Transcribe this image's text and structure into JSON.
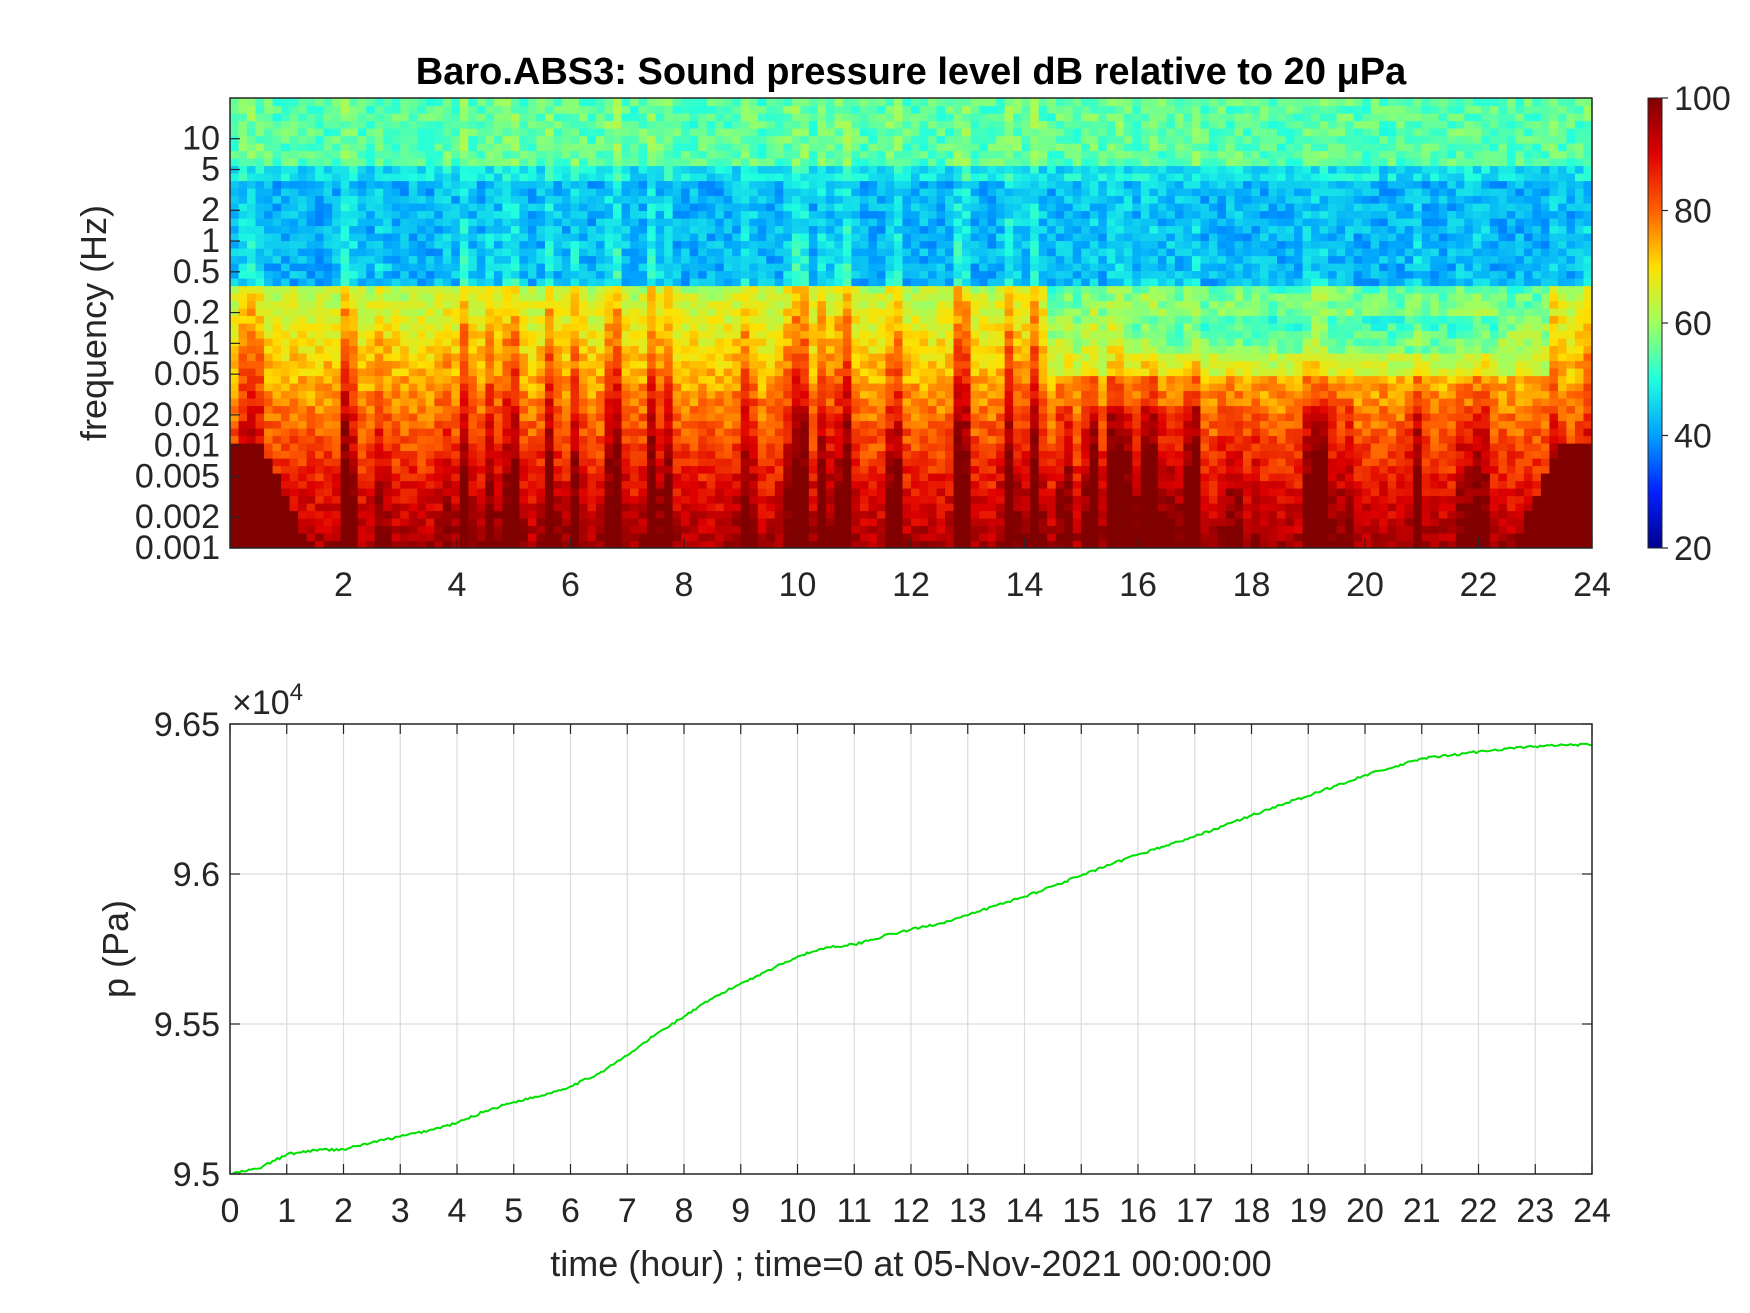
{
  "colors": {
    "background": "#ffffff",
    "axis": "#262626",
    "grid": "#dcdcdc",
    "line": "#00e000",
    "colormap": [
      "#00008f",
      "#0020ff",
      "#00a0ff",
      "#20ffdf",
      "#a0ff60",
      "#ffe000",
      "#ff6000",
      "#df0000",
      "#800000"
    ]
  },
  "chart_data": [
    {
      "type": "heatmap",
      "title": "Baro.ABS3: Sound pressure level dB relative to 20 μPa",
      "ylabel": "frequency (Hz)",
      "xlabel": "",
      "x_range": [
        0,
        24
      ],
      "x_ticks": [
        "2",
        "4",
        "6",
        "8",
        "10",
        "12",
        "14",
        "16",
        "18",
        "20",
        "22",
        "24"
      ],
      "y_scale": "log",
      "y_range": [
        0.001,
        25
      ],
      "y_ticks": [
        "0.001",
        "0.002",
        "0.005",
        "0.01",
        "0.02",
        "0.05",
        "0.1",
        "0.2",
        "0.5",
        "1",
        "2",
        "5",
        "10"
      ],
      "colorbar": {
        "range": [
          20,
          100
        ],
        "ticks": [
          "20",
          "40",
          "60",
          "80",
          "100"
        ]
      },
      "colormap": "jet",
      "grid": false
    },
    {
      "type": "line",
      "title": "",
      "xlabel": "time (hour) ; time=0 at 05-Nov-2021 00:00:00",
      "ylabel": "p (Pa)",
      "y_multiplier": "×10",
      "y_multiplier_exp": "4",
      "xlim": [
        0,
        24
      ],
      "ylim": [
        9.5,
        9.65
      ],
      "x_ticks": [
        "0",
        "1",
        "2",
        "3",
        "4",
        "5",
        "6",
        "7",
        "8",
        "9",
        "10",
        "11",
        "12",
        "13",
        "14",
        "15",
        "16",
        "17",
        "18",
        "19",
        "20",
        "21",
        "22",
        "23",
        "24"
      ],
      "y_ticks": [
        "9.5",
        "9.55",
        "9.6",
        "9.65"
      ],
      "grid": true,
      "series": [
        {
          "x": [
            0,
            0.5,
            1,
            1.5,
            2,
            2.5,
            3,
            3.5,
            4,
            4.5,
            5,
            5.5,
            6,
            6.5,
            7,
            7.5,
            8,
            8.5,
            9,
            9.5,
            10,
            10.5,
            11,
            11.5,
            12,
            12.5,
            13,
            13.5,
            14,
            14.5,
            15,
            15.5,
            16,
            16.5,
            17,
            17.5,
            18,
            18.5,
            19,
            19.5,
            20,
            20.5,
            21,
            21.5,
            22,
            22.5,
            23,
            23.5,
            24
          ],
          "y": [
            9.5,
            9.5018,
            9.5065,
            9.508,
            9.5082,
            9.5105,
            9.5125,
            9.5145,
            9.517,
            9.521,
            9.524,
            9.5262,
            9.5292,
            9.5335,
            9.5395,
            9.5465,
            9.5525,
            9.5585,
            9.5635,
            9.568,
            9.5725,
            9.5755,
            9.5765,
            9.5792,
            9.5815,
            9.5835,
            9.5862,
            9.5895,
            9.5925,
            9.596,
            9.5995,
            9.603,
            9.6065,
            9.6095,
            9.6125,
            9.616,
            9.6195,
            9.623,
            9.626,
            9.6295,
            9.633,
            9.6355,
            9.6385,
            9.6395,
            9.6408,
            9.6418,
            9.6425,
            9.643,
            9.643
          ]
        }
      ]
    }
  ]
}
